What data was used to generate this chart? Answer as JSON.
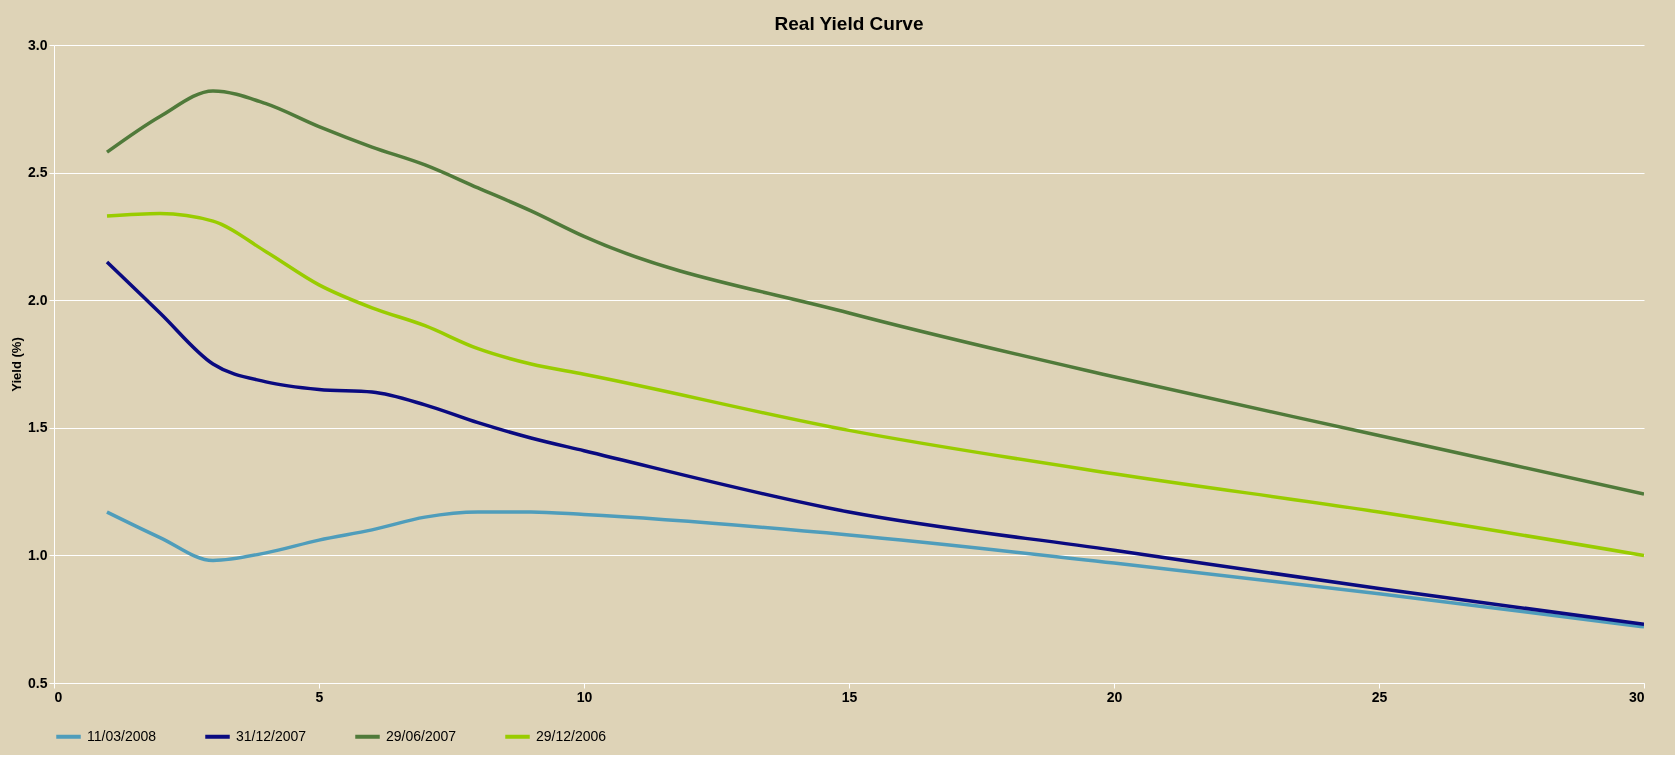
{
  "chart_data": {
    "type": "line",
    "title": "Real Yield Curve",
    "ylabel": "Yield (%)",
    "x": [
      1,
      2,
      3,
      4,
      5,
      6,
      7,
      8,
      9,
      10,
      15,
      20,
      25,
      30
    ],
    "series": [
      {
        "name": "11/03/2008",
        "color": "#4f9dbb",
        "values": [
          1.17,
          1.07,
          0.98,
          1.01,
          1.06,
          1.1,
          1.15,
          1.17,
          1.17,
          1.16,
          1.08,
          0.97,
          0.85,
          0.72
        ]
      },
      {
        "name": "31/12/2007",
        "color": "#0a0a80",
        "values": [
          2.15,
          1.95,
          1.75,
          1.68,
          1.65,
          1.64,
          1.59,
          1.52,
          1.46,
          1.41,
          1.17,
          1.02,
          0.87,
          0.73
        ]
      },
      {
        "name": "29/06/2007",
        "color": "#507a3a",
        "values": [
          2.58,
          2.72,
          2.82,
          2.77,
          2.68,
          2.6,
          2.53,
          2.44,
          2.35,
          2.25,
          1.95,
          1.7,
          1.47,
          1.24
        ]
      },
      {
        "name": "29/12/2006",
        "color": "#99cc00",
        "values": [
          2.33,
          2.34,
          2.31,
          2.19,
          2.06,
          1.97,
          1.9,
          1.81,
          1.75,
          1.71,
          1.49,
          1.32,
          1.17,
          1.0
        ]
      }
    ],
    "xlim": [
      0,
      30
    ],
    "xticks": [
      0,
      5,
      10,
      15,
      20,
      25,
      30
    ],
    "ylim": [
      0.5,
      3.0
    ],
    "yticks": [
      {
        "value": 0.5,
        "label": "0.5"
      },
      {
        "value": 1.0,
        "label": "1.0"
      },
      {
        "value": 1.5,
        "label": "1.5"
      },
      {
        "value": 2.0,
        "label": "2.0"
      },
      {
        "value": 2.5,
        "label": "2.5"
      },
      {
        "value": 3.0,
        "label": "3.0"
      }
    ],
    "grid": "y",
    "legend": "bottom",
    "marker": "none",
    "line_style": "solid"
  }
}
